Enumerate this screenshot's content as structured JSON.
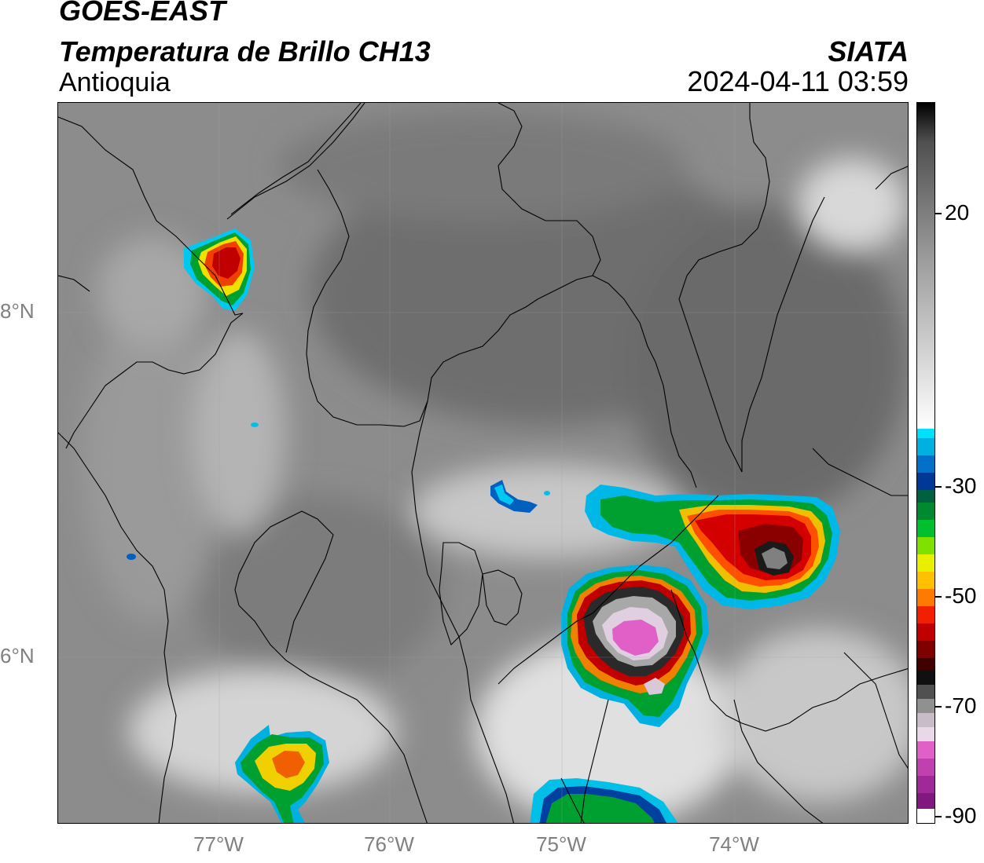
{
  "header": {
    "satellite": "GOES-EAST",
    "product": "Temperatura de Brillo CH13",
    "region": "Antioquia",
    "organization": "SIATA",
    "timestamp": "2024-04-11 03:59"
  },
  "map": {
    "lat_labels": [
      "8°N",
      "6°N"
    ],
    "lon_labels": [
      "77°W",
      "76°W",
      "75°W",
      "74°W"
    ]
  },
  "colorbar": {
    "labels": [
      "20",
      "-30",
      "-50",
      "-70",
      "-90"
    ],
    "colors": {
      "warm_gray": "#6e6e6e",
      "white": "#f4f4f4",
      "cyan": "#00d8f0",
      "blue": "#0030a0",
      "green": "#00b020",
      "yellow": "#f0e800",
      "orange": "#ff8c00",
      "red": "#e00000",
      "darkred": "#700000",
      "black": "#000000",
      "pink": "#e060c8",
      "purple": "#8a1a8a"
    }
  }
}
